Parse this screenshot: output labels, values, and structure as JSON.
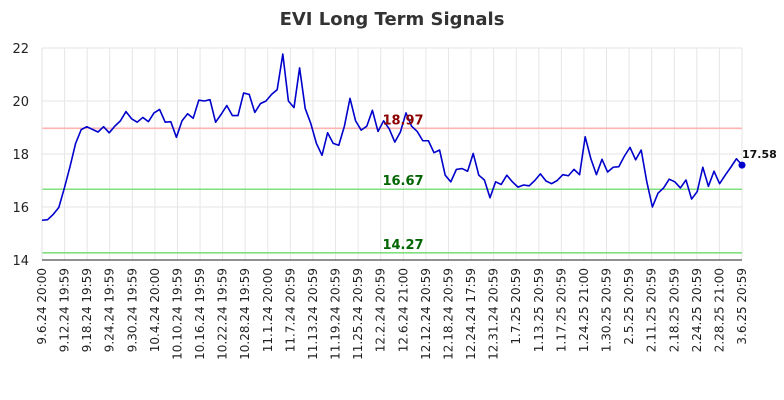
{
  "chart_data": {
    "type": "line",
    "title": "EVI Long Term Signals",
    "xlabel": "",
    "ylabel": "",
    "ylim": [
      14,
      22
    ],
    "yticks": [
      14,
      16,
      18,
      20,
      22
    ],
    "grid": true,
    "x_tick_labels": [
      "9.6.24 20:00",
      "9.12.24 19:59",
      "9.18.24 19:59",
      "9.24.24 19:59",
      "9.30.24 19:59",
      "10.4.24 20:00",
      "10.10.24 19:59",
      "10.16.24 19:59",
      "10.22.24 19:59",
      "10.28.24 19:59",
      "11.1.24 20:00",
      "11.7.24 20:59",
      "11.13.24 20:59",
      "11.19.24 20:59",
      "11.25.24 20:59",
      "12.2.24 20:59",
      "12.6.24 21:00",
      "12.12.24 20:59",
      "12.18.24 20:59",
      "12.24.24 17:59",
      "12.31.24 20:59",
      "1.7.25 20:59",
      "1.13.25 20:59",
      "1.17.25 20:59",
      "1.24.25 21:00",
      "1.30.25 20:59",
      "2.5.25 20:59",
      "2.11.25 20:59",
      "2.18.25 20:59",
      "2.24.25 20:59",
      "2.28.25 21:00",
      "3.6.25 20:59"
    ],
    "series": [
      {
        "name": "",
        "color": "#0000cc",
        "values": [
          15.5,
          15.52,
          15.72,
          15.98,
          16.72,
          17.52,
          18.4,
          18.92,
          19.03,
          18.93,
          18.83,
          19.03,
          18.8,
          19.05,
          19.25,
          19.6,
          19.33,
          19.2,
          19.38,
          19.22,
          19.55,
          19.68,
          19.2,
          19.22,
          18.63,
          19.25,
          19.52,
          19.35,
          20.03,
          20.0,
          20.05,
          19.2,
          19.5,
          19.83,
          19.45,
          19.45,
          20.3,
          20.25,
          19.57,
          19.9,
          20.0,
          20.25,
          20.43,
          21.77,
          20.0,
          19.75,
          21.25,
          19.72,
          19.15,
          18.4,
          17.95,
          18.8,
          18.4,
          18.33,
          19.05,
          20.1,
          19.25,
          18.9,
          19.05,
          19.65,
          18.85,
          19.25,
          18.95,
          18.45,
          18.83,
          19.55,
          19.05,
          18.85,
          18.5,
          18.5,
          18.05,
          18.15,
          17.2,
          16.95,
          17.42,
          17.45,
          17.35,
          18.02,
          17.2,
          17.02,
          16.35,
          16.95,
          16.85,
          17.2,
          16.95,
          16.75,
          16.83,
          16.8,
          17.0,
          17.25,
          16.98,
          16.88,
          17.0,
          17.22,
          17.18,
          17.42,
          17.22,
          18.65,
          17.83,
          17.22,
          17.8,
          17.32,
          17.5,
          17.52,
          17.92,
          18.25,
          17.78,
          18.15,
          16.95,
          16.0,
          16.52,
          16.72,
          17.05,
          16.95,
          16.72,
          17.02,
          16.3,
          16.58,
          17.5,
          16.78,
          17.35,
          16.88,
          17.2,
          17.5,
          17.82,
          17.58
        ]
      }
    ],
    "annotations": [
      {
        "label": "18.97",
        "value": 18.97,
        "text_color": "#8b0000",
        "line_color": "#ffb3b3"
      },
      {
        "label": "16.67",
        "value": 16.67,
        "text_color": "#006400",
        "line_color": "#80e080"
      },
      {
        "label": "14.27",
        "value": 14.27,
        "text_color": "#006400",
        "line_color": "#80e080"
      }
    ],
    "last_value_label": "17.58"
  }
}
